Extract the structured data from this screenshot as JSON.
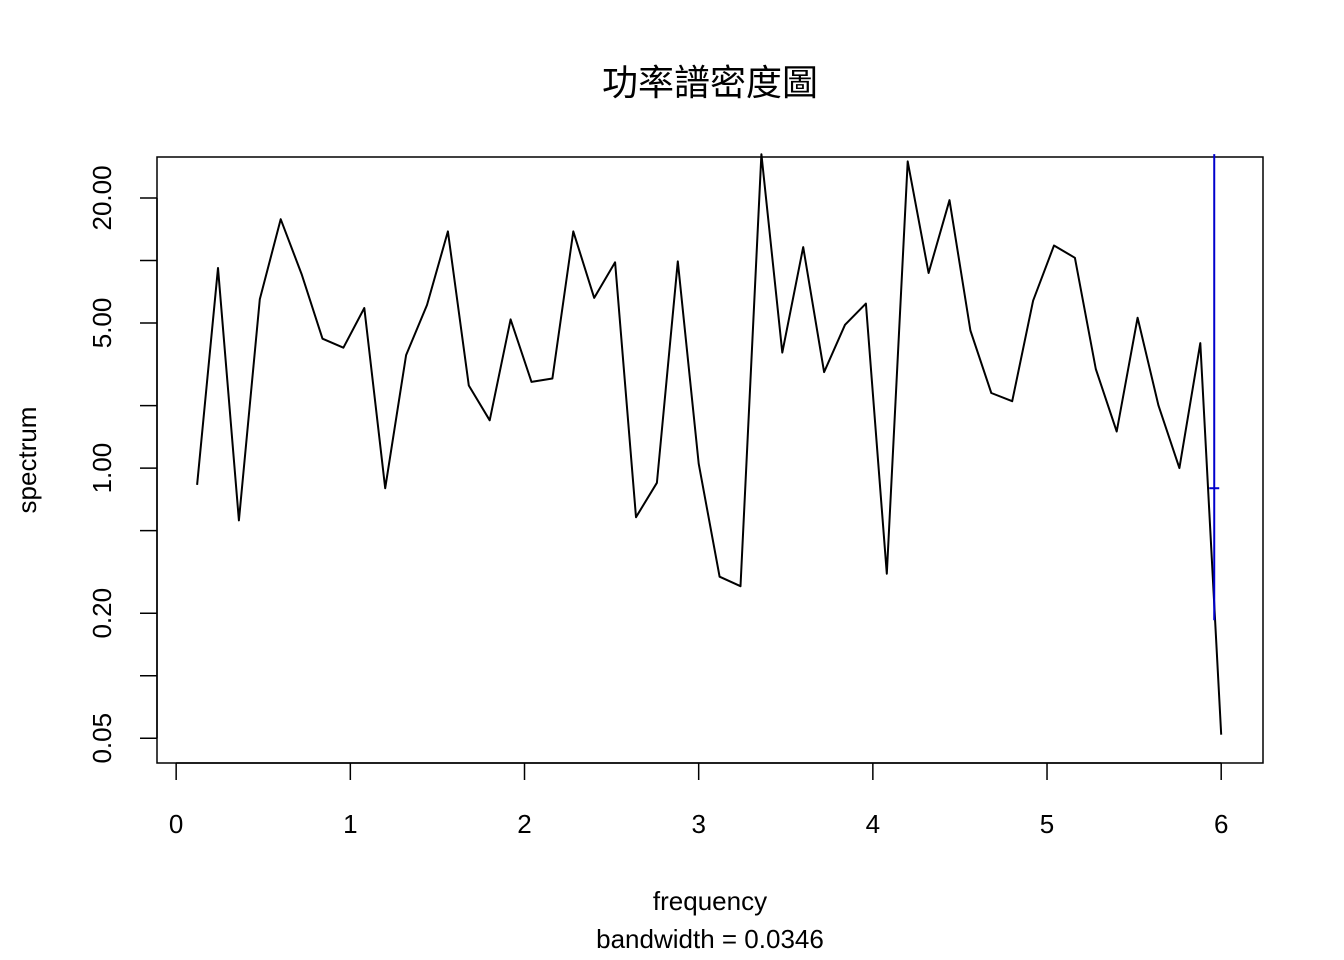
{
  "chart_data": {
    "type": "line",
    "title": "功率譜密度圖",
    "xlabel": "frequency",
    "sublabel": "bandwidth = 0.0346",
    "ylabel": "spectrum",
    "y_scale": "log",
    "xlim": [
      -0.11,
      6.24
    ],
    "ylim": [
      0.038,
      31.5
    ],
    "x_ticks": [
      0,
      1,
      2,
      3,
      4,
      5,
      6
    ],
    "x_tick_labels": [
      "0",
      "1",
      "2",
      "3",
      "4",
      "5",
      "6"
    ],
    "y_ticks_labeled": [
      0.05,
      0.2,
      1.0,
      5.0,
      20.0
    ],
    "y_tick_labels": [
      "0.05",
      "0.20",
      "1.00",
      "5.00",
      "20.00"
    ],
    "y_ticks_minor": [
      0.1,
      0.5,
      2.0,
      10.0
    ],
    "grid": false,
    "legend": "none",
    "line_color": "#000000",
    "ci_color": "#0000cd",
    "series": [
      {
        "x": [
          0.12,
          0.24,
          0.36,
          0.48,
          0.6,
          0.72,
          0.84,
          0.96,
          1.08,
          1.2,
          1.32,
          1.44,
          1.56,
          1.68,
          1.8,
          1.92,
          2.04,
          2.16,
          2.28,
          2.4,
          2.52,
          2.64,
          2.76,
          2.88,
          3.0,
          3.12,
          3.24,
          3.36,
          3.48,
          3.6,
          3.72,
          3.84,
          3.96,
          4.08,
          4.2,
          4.32,
          4.44,
          4.56,
          4.68,
          4.8,
          4.92,
          5.04,
          5.16,
          5.28,
          5.4,
          5.52,
          5.64,
          5.76,
          5.88,
          6.0
        ],
        "values": [
          0.83,
          9.2,
          0.56,
          6.5,
          15.8,
          8.6,
          4.2,
          3.8,
          5.9,
          0.8,
          3.5,
          6.1,
          13.8,
          2.5,
          1.7,
          5.2,
          2.6,
          2.7,
          13.8,
          6.6,
          9.8,
          0.58,
          0.85,
          9.9,
          1.05,
          0.3,
          0.27,
          32.5,
          3.6,
          11.6,
          2.9,
          4.9,
          6.2,
          0.31,
          30.0,
          8.7,
          19.5,
          4.6,
          2.3,
          2.1,
          6.4,
          11.8,
          10.3,
          3.0,
          1.5,
          5.3,
          2.0,
          1.0,
          4.0,
          0.052
        ]
      }
    ],
    "ci_bar": {
      "x": 5.96,
      "center": 0.8,
      "lower": 0.185,
      "upper": 32.5
    }
  }
}
